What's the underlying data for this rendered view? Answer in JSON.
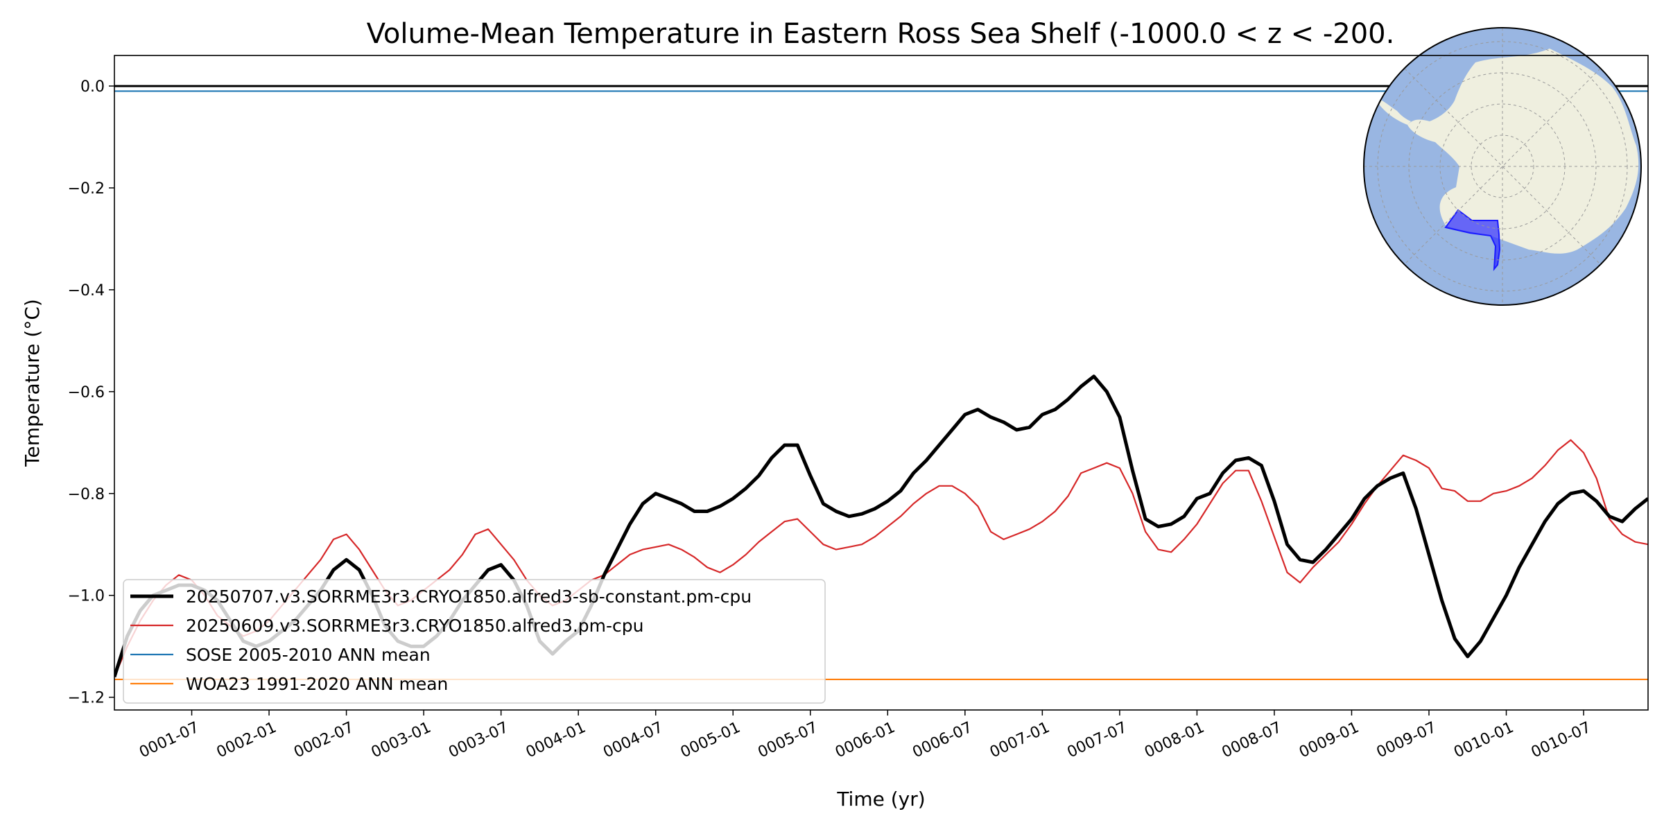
{
  "chart_data": {
    "type": "line",
    "title": "Volume-Mean Temperature in Eastern Ross Sea Shelf (-1000.0 < z < -200.",
    "xlabel": "Time (yr)",
    "ylabel": "Temperature (°C)",
    "xlim": [
      "0001-01",
      "0010-12"
    ],
    "ylim": [
      -1.225,
      0.06
    ],
    "xticks": [
      "0001-07",
      "0002-01",
      "0002-07",
      "0003-01",
      "0003-07",
      "0004-01",
      "0004-07",
      "0005-01",
      "0005-07",
      "0006-01",
      "0006-07",
      "0007-01",
      "0007-07",
      "0008-01",
      "0008-07",
      "0009-01",
      "0009-07",
      "0010-01",
      "0010-07"
    ],
    "yticks": [
      0.0,
      -0.2,
      -0.4,
      -0.6,
      -0.8,
      -1.0,
      -1.2
    ],
    "ytick_labels": [
      "0.0",
      "−0.2",
      "−0.4",
      "−0.6",
      "−0.8",
      "−1.0",
      "−1.2"
    ],
    "zero_line": 0.0,
    "legend_position": "lower-left",
    "x": [
      "0001-01",
      "0001-02",
      "0001-03",
      "0001-04",
      "0001-05",
      "0001-06",
      "0001-07",
      "0001-08",
      "0001-09",
      "0001-10",
      "0001-11",
      "0001-12",
      "0002-01",
      "0002-02",
      "0002-03",
      "0002-04",
      "0002-05",
      "0002-06",
      "0002-07",
      "0002-08",
      "0002-09",
      "0002-10",
      "0002-11",
      "0002-12",
      "0003-01",
      "0003-02",
      "0003-03",
      "0003-04",
      "0003-05",
      "0003-06",
      "0003-07",
      "0003-08",
      "0003-09",
      "0003-10",
      "0003-11",
      "0003-12",
      "0004-01",
      "0004-02",
      "0004-03",
      "0004-04",
      "0004-05",
      "0004-06",
      "0004-07",
      "0004-08",
      "0004-09",
      "0004-10",
      "0004-11",
      "0004-12",
      "0005-01",
      "0005-02",
      "0005-03",
      "0005-04",
      "0005-05",
      "0005-06",
      "0005-07",
      "0005-08",
      "0005-09",
      "0005-10",
      "0005-11",
      "0005-12",
      "0006-01",
      "0006-02",
      "0006-03",
      "0006-04",
      "0006-05",
      "0006-06",
      "0006-07",
      "0006-08",
      "0006-09",
      "0006-10",
      "0006-11",
      "0006-12",
      "0007-01",
      "0007-02",
      "0007-03",
      "0007-04",
      "0007-05",
      "0007-06",
      "0007-07",
      "0007-08",
      "0007-09",
      "0007-10",
      "0007-11",
      "0007-12",
      "0008-01",
      "0008-02",
      "0008-03",
      "0008-04",
      "0008-05",
      "0008-06",
      "0008-07",
      "0008-08",
      "0008-09",
      "0008-10",
      "0008-11",
      "0008-12",
      "0009-01",
      "0009-02",
      "0009-03",
      "0009-04",
      "0009-05",
      "0009-06",
      "0009-07",
      "0009-08",
      "0009-09",
      "0009-10",
      "0009-11",
      "0009-12",
      "0010-01",
      "0010-02",
      "0010-03",
      "0010-04",
      "0010-05",
      "0010-06",
      "0010-07",
      "0010-08",
      "0010-09",
      "0010-10",
      "0010-11",
      "0010-12"
    ],
    "series": [
      {
        "name": "20250707.v3.SORRME3r3.CRYO1850.alfred3-sb-constant.pm-cpu",
        "color": "#000000",
        "values": [
          -1.16,
          -1.08,
          -1.03,
          -1.0,
          -0.99,
          -0.98,
          -0.98,
          -0.99,
          -1.01,
          -1.05,
          -1.09,
          -1.1,
          -1.09,
          -1.07,
          -1.05,
          -1.02,
          -0.99,
          -0.95,
          -0.93,
          -0.95,
          -1.0,
          -1.06,
          -1.09,
          -1.1,
          -1.1,
          -1.08,
          -1.05,
          -1.01,
          -0.98,
          -0.95,
          -0.94,
          -0.97,
          -1.02,
          -1.09,
          -1.115,
          -1.09,
          -1.07,
          -1.02,
          -0.96,
          -0.91,
          -0.86,
          -0.82,
          -0.8,
          -0.81,
          -0.82,
          -0.835,
          -0.835,
          -0.825,
          -0.81,
          -0.79,
          -0.765,
          -0.73,
          -0.705,
          -0.705,
          -0.765,
          -0.82,
          -0.835,
          -0.845,
          -0.84,
          -0.83,
          -0.815,
          -0.795,
          -0.76,
          -0.735,
          -0.705,
          -0.675,
          -0.645,
          -0.635,
          -0.65,
          -0.66,
          -0.675,
          -0.67,
          -0.645,
          -0.635,
          -0.615,
          -0.59,
          -0.57,
          -0.6,
          -0.65,
          -0.755,
          -0.85,
          -0.865,
          -0.86,
          -0.845,
          -0.81,
          -0.8,
          -0.76,
          -0.735,
          -0.73,
          -0.745,
          -0.815,
          -0.9,
          -0.93,
          -0.935,
          -0.91,
          -0.88,
          -0.85,
          -0.81,
          -0.785,
          -0.77,
          -0.76,
          -0.83,
          -0.92,
          -1.01,
          -1.085,
          -1.12,
          -1.09,
          -1.045,
          -1.0,
          -0.945,
          -0.9,
          -0.855,
          -0.82,
          -0.8,
          -0.795,
          -0.815,
          -0.845,
          -0.855,
          -0.83,
          -0.81
        ]
      },
      {
        "name": "20250609.v3.SORRME3r3.CRYO1850.alfred3.pm-cpu",
        "color": "#d62728",
        "values": [
          -1.16,
          -1.1,
          -1.05,
          -1.01,
          -0.98,
          -0.96,
          -0.97,
          -1.0,
          -1.04,
          -1.06,
          -1.08,
          -1.07,
          -1.05,
          -1.02,
          -0.99,
          -0.96,
          -0.93,
          -0.89,
          -0.88,
          -0.91,
          -0.95,
          -0.99,
          -1.02,
          -1.01,
          -0.99,
          -0.97,
          -0.95,
          -0.92,
          -0.88,
          -0.87,
          -0.9,
          -0.93,
          -0.97,
          -1.0,
          -1.02,
          -1.01,
          -0.99,
          -0.97,
          -0.96,
          -0.94,
          -0.92,
          -0.91,
          -0.905,
          -0.9,
          -0.91,
          -0.925,
          -0.945,
          -0.955,
          -0.94,
          -0.92,
          -0.895,
          -0.875,
          -0.855,
          -0.85,
          -0.875,
          -0.9,
          -0.91,
          -0.905,
          -0.9,
          -0.885,
          -0.865,
          -0.845,
          -0.82,
          -0.8,
          -0.785,
          -0.785,
          -0.8,
          -0.825,
          -0.875,
          -0.89,
          -0.88,
          -0.87,
          -0.855,
          -0.835,
          -0.805,
          -0.76,
          -0.75,
          -0.74,
          -0.75,
          -0.8,
          -0.875,
          -0.91,
          -0.915,
          -0.89,
          -0.86,
          -0.82,
          -0.78,
          -0.755,
          -0.755,
          -0.815,
          -0.885,
          -0.955,
          -0.975,
          -0.945,
          -0.92,
          -0.895,
          -0.86,
          -0.82,
          -0.785,
          -0.755,
          -0.725,
          -0.735,
          -0.75,
          -0.79,
          -0.795,
          -0.815,
          -0.815,
          -0.8,
          -0.795,
          -0.785,
          -0.77,
          -0.745,
          -0.715,
          -0.695,
          -0.72,
          -0.77,
          -0.85,
          -0.88,
          -0.895,
          -0.9
        ]
      },
      {
        "name": "SOSE 2005-2010 ANN mean",
        "color": "#1f77b4",
        "constant": -0.01
      },
      {
        "name": "WOA23 1991-2020 ANN mean",
        "color": "#ff7f0e",
        "constant": -1.165
      }
    ]
  },
  "inset_map": {
    "ocean_color": "#99b6e2",
    "land_color": "#efefdf",
    "region_color": "#2c2cff"
  }
}
